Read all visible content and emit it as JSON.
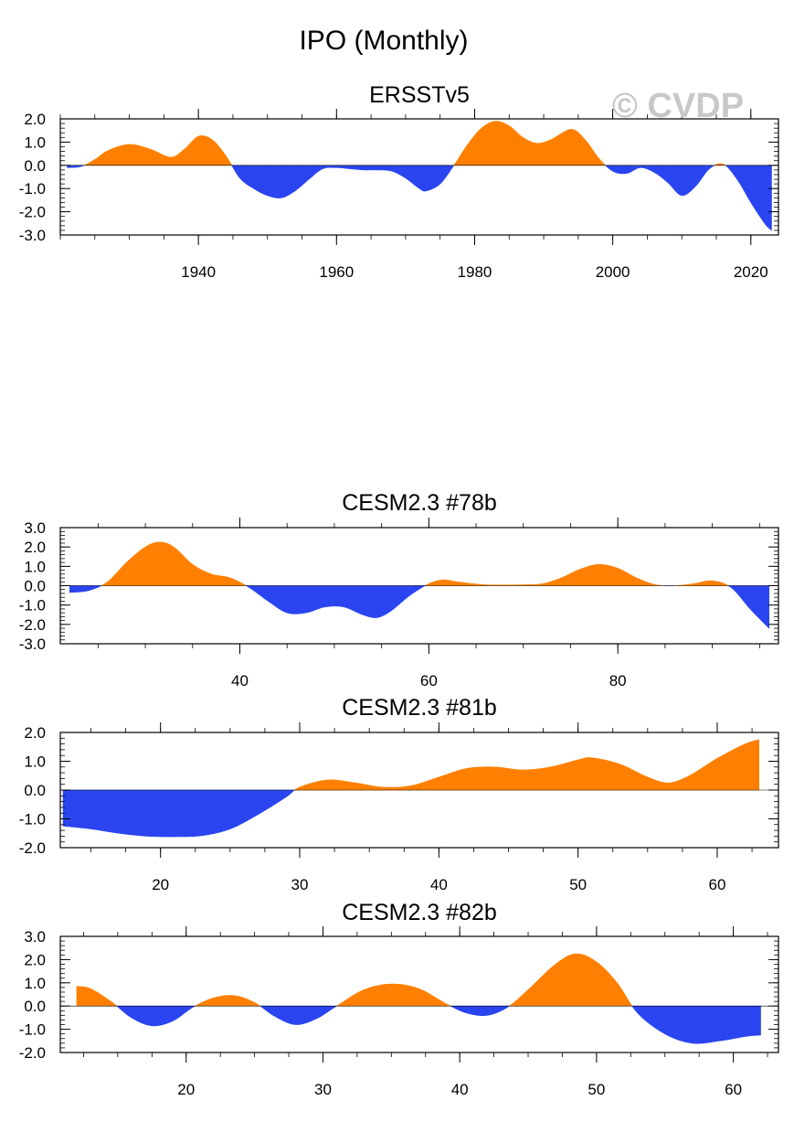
{
  "title": "IPO (Monthly)",
  "watermark": "© CVDP",
  "colors": {
    "positive": "#ff8000",
    "negative": "#2a45f0",
    "frame": "#000000"
  },
  "chart_data": [
    {
      "type": "area",
      "title": "ERSSTv5",
      "xlabel": "",
      "ylabel": "",
      "xlim": [
        1920,
        2024
      ],
      "ylim": [
        -3.0,
        2.0
      ],
      "yticks": [
        2.0,
        1.0,
        0.0,
        -1.0,
        -2.0,
        -3.0
      ],
      "ytick_labels": [
        "2.0",
        "1.0",
        "0.0",
        "-1.0",
        "-2.0",
        "-3.0"
      ],
      "xticks": [
        1940,
        1960,
        1980,
        2000,
        2020
      ],
      "xtick_labels": [
        "1940",
        "1960",
        "1980",
        "2000",
        "2020"
      ],
      "x": [
        1921,
        1923,
        1925,
        1927,
        1930,
        1933,
        1936,
        1938,
        1940,
        1942,
        1944,
        1946,
        1948,
        1950,
        1952,
        1954,
        1956,
        1958,
        1960,
        1962,
        1964,
        1966,
        1968,
        1970,
        1972,
        1973,
        1975,
        1977,
        1979,
        1981,
        1983,
        1985,
        1987,
        1989,
        1991,
        1994,
        1996,
        1998,
        2000,
        2002,
        2004,
        2006,
        2008,
        2010,
        2012,
        2014,
        2016,
        2018,
        2020,
        2022,
        2023
      ],
      "values": [
        -0.1,
        -0.05,
        0.25,
        0.65,
        0.9,
        0.7,
        0.35,
        0.7,
        1.25,
        1.1,
        0.4,
        -0.55,
        -1.0,
        -1.3,
        -1.4,
        -1.1,
        -0.6,
        -0.15,
        -0.1,
        -0.15,
        -0.2,
        -0.2,
        -0.25,
        -0.55,
        -1.0,
        -1.1,
        -0.8,
        0.0,
        0.9,
        1.6,
        1.9,
        1.7,
        1.2,
        0.95,
        1.1,
        1.55,
        1.1,
        0.3,
        -0.25,
        -0.35,
        -0.1,
        -0.3,
        -0.75,
        -1.3,
        -0.9,
        -0.15,
        0.05,
        -0.6,
        -1.6,
        -2.5,
        -2.8
      ]
    },
    {
      "type": "area",
      "title": "CESM2.3 #78b",
      "xlabel": "",
      "ylabel": "",
      "xlim": [
        21,
        97
      ],
      "ylim": [
        -3.0,
        3.0
      ],
      "yticks": [
        3.0,
        2.0,
        1.0,
        0.0,
        -1.0,
        -2.0,
        -3.0
      ],
      "ytick_labels": [
        "3.0",
        "2.0",
        "1.0",
        "0.0",
        "-1.0",
        "-2.0",
        "-3.0"
      ],
      "xticks": [
        40,
        60,
        80
      ],
      "xtick_labels": [
        "40",
        "60",
        "80"
      ],
      "x": [
        22,
        24,
        26,
        28,
        30,
        31.5,
        33,
        35,
        37,
        39,
        41,
        43,
        45,
        47,
        49,
        51,
        53,
        54.5,
        56,
        58,
        60,
        61.5,
        63,
        66,
        70,
        72,
        74,
        76,
        78,
        80,
        82,
        84,
        86,
        88,
        90,
        92,
        94,
        96
      ],
      "values": [
        -0.35,
        -0.25,
        0.2,
        1.2,
        2.0,
        2.25,
        2.0,
        1.1,
        0.6,
        0.4,
        -0.1,
        -0.8,
        -1.4,
        -1.4,
        -1.1,
        -1.1,
        -1.5,
        -1.65,
        -1.3,
        -0.5,
        0.1,
        0.3,
        0.2,
        0.05,
        0.05,
        0.1,
        0.4,
        0.85,
        1.1,
        0.9,
        0.4,
        0.05,
        0.0,
        0.1,
        0.25,
        -0.1,
        -1.2,
        -2.2
      ]
    },
    {
      "type": "area",
      "title": "CESM2.3 #81b",
      "xlabel": "",
      "ylabel": "",
      "xlim": [
        12.8,
        64.4
      ],
      "ylim": [
        -2.0,
        2.0
      ],
      "yticks": [
        2.0,
        1.0,
        0.0,
        -1.0,
        -2.0
      ],
      "ytick_labels": [
        "2.0",
        "1.0",
        "0.0",
        "-1.0",
        "-2.0"
      ],
      "xticks": [
        20,
        30,
        40,
        50,
        60
      ],
      "xtick_labels": [
        "20",
        "30",
        "40",
        "50",
        "60"
      ],
      "x": [
        13,
        15,
        17,
        19,
        21,
        23,
        25,
        27,
        29,
        30,
        32,
        34,
        36,
        38,
        40,
        42,
        44,
        46,
        48,
        50,
        51,
        53,
        55,
        56.5,
        58,
        60,
        62,
        63
      ],
      "values": [
        -1.25,
        -1.35,
        -1.5,
        -1.6,
        -1.62,
        -1.58,
        -1.35,
        -0.85,
        -0.25,
        0.1,
        0.35,
        0.25,
        0.1,
        0.15,
        0.45,
        0.75,
        0.8,
        0.7,
        0.8,
        1.05,
        1.12,
        0.9,
        0.45,
        0.25,
        0.5,
        1.1,
        1.6,
        1.75
      ]
    },
    {
      "type": "area",
      "title": "CESM2.3 #82b",
      "xlabel": "",
      "ylabel": "",
      "xlim": [
        10.8,
        63.3
      ],
      "ylim": [
        -2.0,
        3.0
      ],
      "yticks": [
        3.0,
        2.0,
        1.0,
        0.0,
        -1.0,
        -2.0
      ],
      "ytick_labels": [
        "3.0",
        "2.0",
        "1.0",
        "0.0",
        "-1.0",
        "-2.0"
      ],
      "xticks": [
        20,
        30,
        40,
        50,
        60
      ],
      "xtick_labels": [
        "20",
        "30",
        "40",
        "50",
        "60"
      ],
      "x": [
        12,
        13,
        14.5,
        16,
        17.5,
        19,
        20.5,
        22,
        23.5,
        25,
        26.5,
        28,
        29.5,
        31,
        33,
        35,
        37,
        39,
        40.5,
        42,
        43.5,
        45,
        47,
        48.5,
        50,
        51.5,
        53,
        55,
        57,
        59,
        61,
        62
      ],
      "values": [
        0.85,
        0.75,
        0.2,
        -0.5,
        -0.85,
        -0.65,
        -0.05,
        0.35,
        0.45,
        0.15,
        -0.45,
        -0.8,
        -0.55,
        0.0,
        0.7,
        0.95,
        0.75,
        0.1,
        -0.3,
        -0.4,
        -0.05,
        0.7,
        1.8,
        2.25,
        1.9,
        1.0,
        -0.3,
        -1.2,
        -1.6,
        -1.5,
        -1.3,
        -1.25
      ]
    }
  ]
}
